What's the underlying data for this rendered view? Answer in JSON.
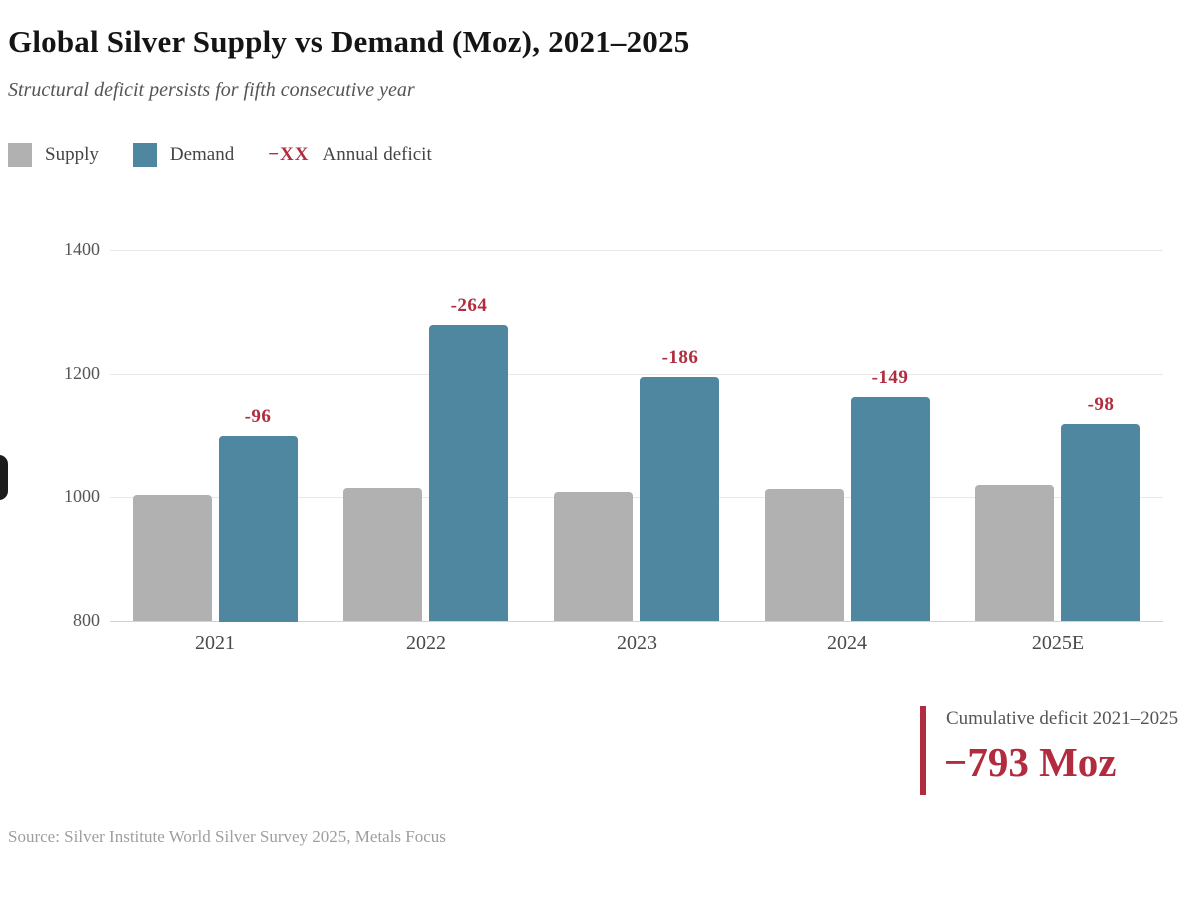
{
  "title": "Global Silver Supply vs Demand (Moz), 2021–2025",
  "subtitle": "Structural deficit persists for fifth consecutive year",
  "legend": {
    "supply_label": "Supply",
    "demand_label": "Demand",
    "deficit_symbol": "−XX",
    "deficit_label": "Annual deficit"
  },
  "colors": {
    "supply": "#b1b1b1",
    "demand": "#4f86a0",
    "accent": "#b02c3e",
    "title_text": "#151515",
    "subtitle_text": "#555555"
  },
  "chart_data": {
    "type": "bar",
    "title": "Global Silver Supply vs Demand (Moz), 2021–2025",
    "categories": [
      "2021",
      "2022",
      "2023",
      "2024",
      "2025E"
    ],
    "series": [
      {
        "name": "Supply",
        "color_key": "supply",
        "values": [
          1004,
          1015,
          1008,
          1013,
          1020
        ]
      },
      {
        "name": "Demand",
        "color_key": "demand",
        "values": [
          1100,
          1279,
          1194,
          1162,
          1118
        ]
      }
    ],
    "deficit_labels": [
      "-96",
      "-264",
      "-186",
      "-149",
      "-98"
    ],
    "xlabel": "",
    "ylabel": "",
    "ylim": [
      800,
      1400
    ],
    "yticks": [
      800,
      1000,
      1200,
      1400
    ],
    "grid": true,
    "legend_position": "top-left"
  },
  "summary": {
    "label": "Cumulative deficit 2021–2025",
    "value": "−793 Moz"
  },
  "source": "Source: Silver Institute World Silver Survey 2025, Metals Focus"
}
